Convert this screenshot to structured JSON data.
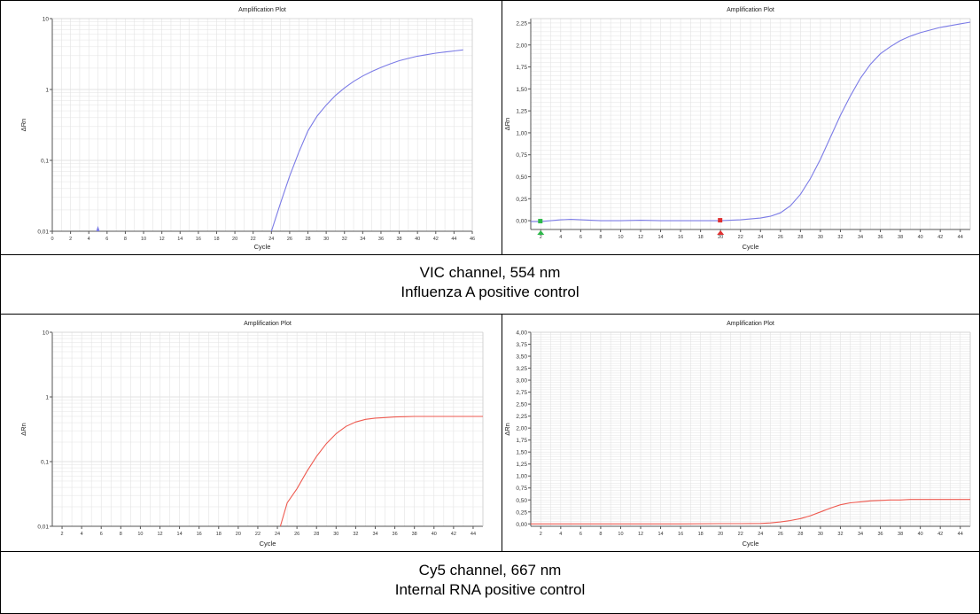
{
  "captions": [
    {
      "line1": "VIC channel, 554 nm",
      "line2": "Influenza A positive control"
    },
    {
      "line1": "Cy5 channel, 667 nm",
      "line2": "Internal RNA positive control"
    }
  ],
  "colors": {
    "vic": "#7b7be6",
    "cy5": "#ee5a50",
    "grid": "#e3e3e3",
    "axis": "#555555"
  },
  "chart_data": [
    {
      "type": "line",
      "title": "Amplification Plot",
      "xlabel": "Cycle",
      "ylabel": "ΔRn",
      "scale": "log",
      "ylim": [
        0.01,
        10
      ],
      "xlim": [
        0,
        46
      ],
      "yticks": [
        "0,01",
        "0,1",
        "1",
        "10"
      ],
      "xticks": [
        "0",
        "2",
        "4",
        "6",
        "8",
        "10",
        "12",
        "14",
        "16",
        "18",
        "20",
        "22",
        "24",
        "26",
        "28",
        "30",
        "32",
        "34",
        "36",
        "38",
        "40",
        "42",
        "44",
        "46"
      ],
      "grid": true,
      "series": [
        {
          "color": "#7b7be6",
          "x": [
            24,
            25,
            26,
            27,
            28,
            29,
            30,
            31,
            32,
            33,
            34,
            35,
            36,
            37,
            38,
            39,
            40,
            41,
            42,
            43,
            44,
            45
          ],
          "values": [
            0.01,
            0.025,
            0.06,
            0.13,
            0.26,
            0.42,
            0.6,
            0.82,
            1.05,
            1.3,
            1.55,
            1.8,
            2.05,
            2.3,
            2.55,
            2.75,
            2.95,
            3.1,
            3.25,
            3.38,
            3.5,
            3.62
          ]
        }
      ],
      "markers": [
        {
          "x": 5,
          "y": 0.01,
          "color": "#7b7be6"
        }
      ]
    },
    {
      "type": "line",
      "title": "Amplification Plot",
      "xlabel": "Cycle",
      "ylabel": "ΔRn",
      "scale": "linear",
      "ylim": [
        -0.1,
        2.3
      ],
      "xlim": [
        1,
        45
      ],
      "yticks": [
        "0,00",
        "0,25",
        "0,50",
        "0,75",
        "1,00",
        "1,25",
        "1,50",
        "1,75",
        "2,00",
        "2,25"
      ],
      "ytick_values": [
        0,
        0.25,
        0.5,
        0.75,
        1,
        1.25,
        1.5,
        1.75,
        2,
        2.25
      ],
      "xticks": [
        "2",
        "4",
        "6",
        "8",
        "10",
        "12",
        "14",
        "16",
        "18",
        "20",
        "22",
        "24",
        "26",
        "28",
        "30",
        "32",
        "34",
        "36",
        "38",
        "40",
        "42",
        "44"
      ],
      "grid": true,
      "series": [
        {
          "color": "#7b7be6",
          "x": [
            1,
            2,
            3,
            4,
            5,
            6,
            8,
            10,
            12,
            14,
            16,
            18,
            20,
            22,
            23,
            24,
            25,
            26,
            27,
            28,
            29,
            30,
            31,
            32,
            33,
            34,
            35,
            36,
            37,
            38,
            39,
            40,
            41,
            42,
            43,
            44,
            45
          ],
          "values": [
            -0.01,
            -0.01,
            0.0,
            0.01,
            0.015,
            0.01,
            0.0,
            0.0,
            0.005,
            0.0,
            0.0,
            0.0,
            0.0,
            0.01,
            0.02,
            0.03,
            0.05,
            0.09,
            0.17,
            0.3,
            0.48,
            0.7,
            0.95,
            1.2,
            1.42,
            1.62,
            1.78,
            1.9,
            1.98,
            2.05,
            2.1,
            2.14,
            2.17,
            2.2,
            2.22,
            2.24,
            2.26
          ]
        }
      ],
      "markers": [
        {
          "x": 2,
          "y": -0.01,
          "color": "#2db84a"
        },
        {
          "x": 20,
          "y": 0.0,
          "color": "#e03030"
        }
      ]
    },
    {
      "type": "line",
      "title": "Amplification Plot",
      "xlabel": "Cycle",
      "ylabel": "ΔRn",
      "scale": "log",
      "ylim": [
        0.01,
        10
      ],
      "xlim": [
        1,
        45
      ],
      "yticks": [
        "0,01",
        "0,1",
        "1",
        "10"
      ],
      "xticks": [
        "2",
        "4",
        "6",
        "8",
        "10",
        "12",
        "14",
        "16",
        "18",
        "20",
        "22",
        "24",
        "26",
        "28",
        "30",
        "32",
        "34",
        "36",
        "38",
        "40",
        "42",
        "44"
      ],
      "grid": true,
      "series": [
        {
          "color": "#ee5a50",
          "x": [
            24.3,
            25,
            26,
            27,
            28,
            29,
            30,
            31,
            32,
            33,
            34,
            35,
            36,
            37,
            38,
            39,
            40,
            41,
            42,
            43,
            44,
            45
          ],
          "values": [
            0.01,
            0.023,
            0.038,
            0.07,
            0.12,
            0.19,
            0.27,
            0.35,
            0.41,
            0.45,
            0.47,
            0.48,
            0.49,
            0.495,
            0.5,
            0.5,
            0.5,
            0.5,
            0.5,
            0.5,
            0.5,
            0.5
          ]
        }
      ]
    },
    {
      "type": "line",
      "title": "Amplification Plot",
      "xlabel": "Cycle",
      "ylabel": "ΔRn",
      "scale": "linear",
      "ylim": [
        -0.05,
        4.0
      ],
      "xlim": [
        1,
        45
      ],
      "yticks": [
        "0,00",
        "0,25",
        "0,50",
        "0,75",
        "1,00",
        "1,25",
        "1,50",
        "1,75",
        "2,00",
        "2,25",
        "2,50",
        "2,75",
        "3,00",
        "3,25",
        "3,50",
        "3,75",
        "4,00"
      ],
      "ytick_values": [
        0,
        0.25,
        0.5,
        0.75,
        1,
        1.25,
        1.5,
        1.75,
        2,
        2.25,
        2.5,
        2.75,
        3,
        3.25,
        3.5,
        3.75,
        4
      ],
      "xticks": [
        "2",
        "4",
        "6",
        "8",
        "10",
        "12",
        "14",
        "16",
        "18",
        "20",
        "22",
        "24",
        "26",
        "28",
        "30",
        "32",
        "34",
        "36",
        "38",
        "40",
        "42",
        "44"
      ],
      "grid": true,
      "series": [
        {
          "color": "#ee5a50",
          "x": [
            1,
            4,
            8,
            12,
            16,
            20,
            22,
            24,
            25,
            26,
            27,
            28,
            29,
            30,
            31,
            32,
            33,
            34,
            35,
            36,
            37,
            38,
            39,
            40,
            42,
            44,
            45
          ],
          "values": [
            0,
            0,
            0,
            0,
            0,
            0.005,
            0.005,
            0.01,
            0.02,
            0.04,
            0.07,
            0.11,
            0.17,
            0.25,
            0.33,
            0.4,
            0.44,
            0.46,
            0.48,
            0.49,
            0.5,
            0.5,
            0.51,
            0.51,
            0.51,
            0.51,
            0.51
          ]
        }
      ]
    }
  ]
}
